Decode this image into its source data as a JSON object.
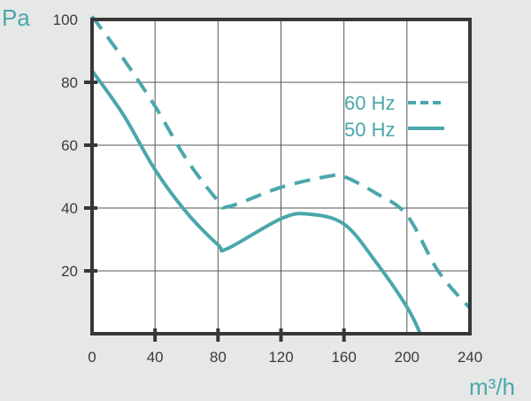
{
  "chart_data": {
    "type": "line",
    "title": "",
    "xlabel": "m³/h",
    "ylabel": "Pa",
    "xlim": [
      0,
      240
    ],
    "ylim": [
      0,
      100
    ],
    "xticks": [
      "0",
      "40",
      "80",
      "120",
      "160",
      "200",
      "240"
    ],
    "yticks": [
      "20",
      "40",
      "60",
      "80",
      "100"
    ],
    "grid": true,
    "legend_position": "right",
    "color": "#4aa7ab",
    "series": [
      {
        "name": "60 Hz",
        "style": "dashed",
        "x": [
          0,
          20,
          40,
          60,
          80,
          87,
          120,
          150,
          160,
          180,
          200,
          220,
          240
        ],
        "y": [
          101,
          87.4,
          72.4,
          55.5,
          42.3,
          40.5,
          46.6,
          50.1,
          50,
          44.8,
          37.7,
          19.8,
          8.1
        ]
      },
      {
        "name": "50 Hz",
        "style": "solid",
        "x": [
          0,
          20,
          40,
          60,
          80,
          86,
          120,
          137,
          160,
          180,
          200,
          208.5
        ],
        "y": [
          83.7,
          69.6,
          52.2,
          38.6,
          28.3,
          27.1,
          36.6,
          38.1,
          34.9,
          23,
          8.5,
          0
        ]
      }
    ]
  }
}
